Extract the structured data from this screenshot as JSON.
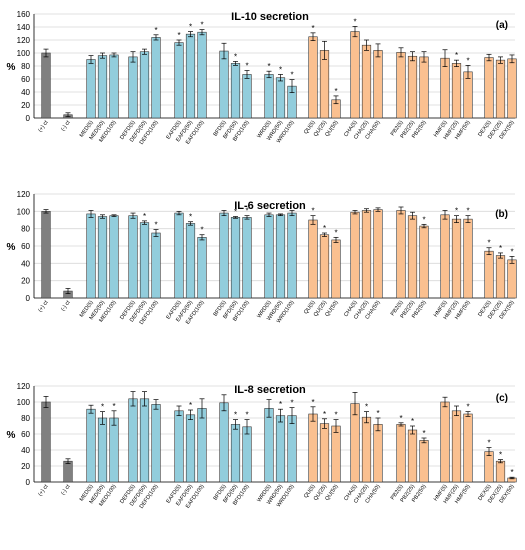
{
  "colors": {
    "control": "#808080",
    "blue_group": "#92cddc",
    "orange_group": "#fac090",
    "bar_edge": "#3a3a3a",
    "grid": "#d9d9d9"
  },
  "chart_data": [
    {
      "type": "bar",
      "title": "IL-10 secretion",
      "panel_label": "(a)",
      "ylabel": "%",
      "ylim": [
        0,
        160
      ],
      "yticks": [
        0,
        20,
        40,
        60,
        80,
        100,
        120,
        140,
        160
      ],
      "grid": true,
      "categories": [
        "(+) ct",
        "(-) ct",
        "MED(5)",
        "MED(50)",
        "MED(100)",
        "DEFD(5)",
        "DEFD(50)",
        "DEFD(100)",
        "EAFD(5)",
        "EAFD(50)",
        "EAFD(100)",
        "BFD(5)",
        "BFD(50)",
        "BFD(100)",
        "WRD(5)",
        "WRD(50)",
        "WRD(100)",
        "QU(5)",
        "QU(25)",
        "QU(50)",
        "CHA(5)",
        "CHA(25)",
        "CHA(50)",
        "PB2(5)",
        "PB2(25)",
        "PB2(50)",
        "HMF(5)",
        "HMF(25)",
        "HMF(50)",
        "DEX(5)",
        "DEX(25)",
        "DEX(50)"
      ],
      "groups": [
        "control",
        "control",
        "blue",
        "blue",
        "blue",
        "blue",
        "blue",
        "blue",
        "blue",
        "blue",
        "blue",
        "blue",
        "blue",
        "blue",
        "blue",
        "blue",
        "blue",
        "orange",
        "orange",
        "orange",
        "orange",
        "orange",
        "orange",
        "orange",
        "orange",
        "orange",
        "orange",
        "orange",
        "orange",
        "orange",
        "orange",
        "orange"
      ],
      "values": [
        100,
        5,
        90,
        96,
        97,
        94,
        102,
        124,
        116,
        129,
        132,
        103,
        84,
        67,
        67,
        62,
        49,
        125,
        104,
        28,
        133,
        112,
        104,
        101,
        95,
        94,
        92,
        84,
        71,
        93,
        89,
        91
      ],
      "errors": [
        6,
        3,
        6,
        4,
        3,
        8,
        4,
        4,
        4,
        4,
        4,
        12,
        3,
        6,
        5,
        5,
        10,
        6,
        14,
        6,
        8,
        8,
        10,
        7,
        7,
        8,
        13,
        5,
        10,
        5,
        5,
        6
      ],
      "significant": [
        false,
        false,
        false,
        false,
        false,
        false,
        false,
        true,
        true,
        true,
        true,
        false,
        true,
        true,
        true,
        true,
        true,
        true,
        false,
        true,
        true,
        false,
        false,
        false,
        false,
        false,
        false,
        true,
        true,
        false,
        false,
        false
      ]
    },
    {
      "type": "bar",
      "title": "IL-6 secretion",
      "panel_label": "(b)",
      "ylabel": "%",
      "ylim": [
        0,
        120
      ],
      "yticks": [
        0,
        20,
        40,
        60,
        80,
        100,
        120
      ],
      "grid": true,
      "categories": [
        "(+) ct",
        "(-) ct",
        "MED(5)",
        "MED(50)",
        "MED(100)",
        "DEFD(5)",
        "DEFD(50)",
        "DEFD(100)",
        "EAFD(5)",
        "EAFD(50)",
        "EAFD(100)",
        "BFD(5)",
        "BFD(50)",
        "BFD(100)",
        "WRD(5)",
        "WRD(50)",
        "WRD(100)",
        "QU(5)",
        "QU(25)",
        "QU(50)",
        "CHA(5)",
        "CHA(25)",
        "CHA(50)",
        "PB2(5)",
        "PB2(25)",
        "PB2(50)",
        "HMF(5)",
        "HMF(25)",
        "HMF(50)",
        "DEX(5)",
        "DEX(25)",
        "DEX(50)"
      ],
      "groups": [
        "control",
        "control",
        "blue",
        "blue",
        "blue",
        "blue",
        "blue",
        "blue",
        "blue",
        "blue",
        "blue",
        "blue",
        "blue",
        "blue",
        "blue",
        "blue",
        "blue",
        "orange",
        "orange",
        "orange",
        "orange",
        "orange",
        "orange",
        "orange",
        "orange",
        "orange",
        "orange",
        "orange",
        "orange",
        "orange",
        "orange",
        "orange"
      ],
      "values": [
        100,
        8,
        97,
        94,
        95,
        95,
        87,
        75,
        98,
        86,
        70,
        98,
        93,
        93,
        96,
        96,
        98,
        90,
        73,
        67,
        99,
        101,
        102,
        101,
        95,
        83,
        96,
        91,
        91,
        54,
        49,
        44
      ],
      "errors": [
        2,
        3,
        4,
        2,
        1,
        3,
        2,
        4,
        2,
        2,
        3,
        3,
        1,
        2,
        2,
        1,
        3,
        5,
        2,
        3,
        2,
        2,
        2,
        4,
        4,
        2,
        5,
        4,
        4,
        4,
        3,
        4
      ],
      "significant": [
        false,
        false,
        false,
        false,
        false,
        false,
        true,
        true,
        false,
        true,
        true,
        false,
        true,
        true,
        false,
        false,
        false,
        true,
        true,
        true,
        false,
        false,
        false,
        false,
        false,
        true,
        false,
        true,
        true,
        true,
        true,
        true
      ]
    },
    {
      "type": "bar",
      "title": "IL-8 secretion",
      "panel_label": "(c)",
      "ylabel": "%",
      "ylim": [
        0,
        120
      ],
      "yticks": [
        0,
        20,
        40,
        60,
        80,
        100,
        120
      ],
      "grid": true,
      "categories": [
        "(+) ct",
        "(-) ct",
        "MED(5)",
        "MED(50)",
        "MED(100)",
        "DEFD(5)",
        "DEFD(50)",
        "DEFD(100)",
        "EAFD(5)",
        "EAFD(50)",
        "EAFD(100)",
        "BFD(5)",
        "BFD(50)",
        "BFD(100)",
        "WRD(5)",
        "WRD(50)",
        "WRD(100)",
        "QU(5)",
        "QU(25)",
        "QU(50)",
        "CHA(5)",
        "CHA(25)",
        "CHA(50)",
        "PB2(5)",
        "PB2(25)",
        "PB2(50)",
        "HMF(5)",
        "HMF(25)",
        "HMF(50)",
        "DEX(5)",
        "DEX(25)",
        "DEX(50)"
      ],
      "groups": [
        "control",
        "control",
        "blue",
        "blue",
        "blue",
        "blue",
        "blue",
        "blue",
        "blue",
        "blue",
        "blue",
        "blue",
        "blue",
        "blue",
        "blue",
        "blue",
        "blue",
        "orange",
        "orange",
        "orange",
        "orange",
        "orange",
        "orange",
        "orange",
        "orange",
        "orange",
        "orange",
        "orange",
        "orange",
        "orange",
        "orange",
        "orange"
      ],
      "values": [
        100,
        26,
        91,
        80,
        80,
        104,
        104,
        97,
        89,
        84,
        92,
        99,
        72,
        69,
        92,
        83,
        83,
        85,
        73,
        70,
        98,
        81,
        72,
        72,
        65,
        52,
        100,
        89,
        85,
        38,
        26,
        5
      ],
      "errors": [
        7,
        3,
        5,
        8,
        9,
        9,
        9,
        6,
        6,
        6,
        12,
        10,
        6,
        9,
        11,
        8,
        10,
        9,
        6,
        8,
        14,
        7,
        8,
        2,
        5,
        3,
        6,
        6,
        3,
        5,
        2,
        1
      ],
      "significant": [
        false,
        false,
        false,
        true,
        true,
        false,
        false,
        false,
        false,
        true,
        false,
        false,
        true,
        true,
        false,
        true,
        true,
        true,
        true,
        true,
        false,
        true,
        true,
        true,
        true,
        true,
        false,
        false,
        true,
        true,
        true,
        true
      ]
    }
  ]
}
